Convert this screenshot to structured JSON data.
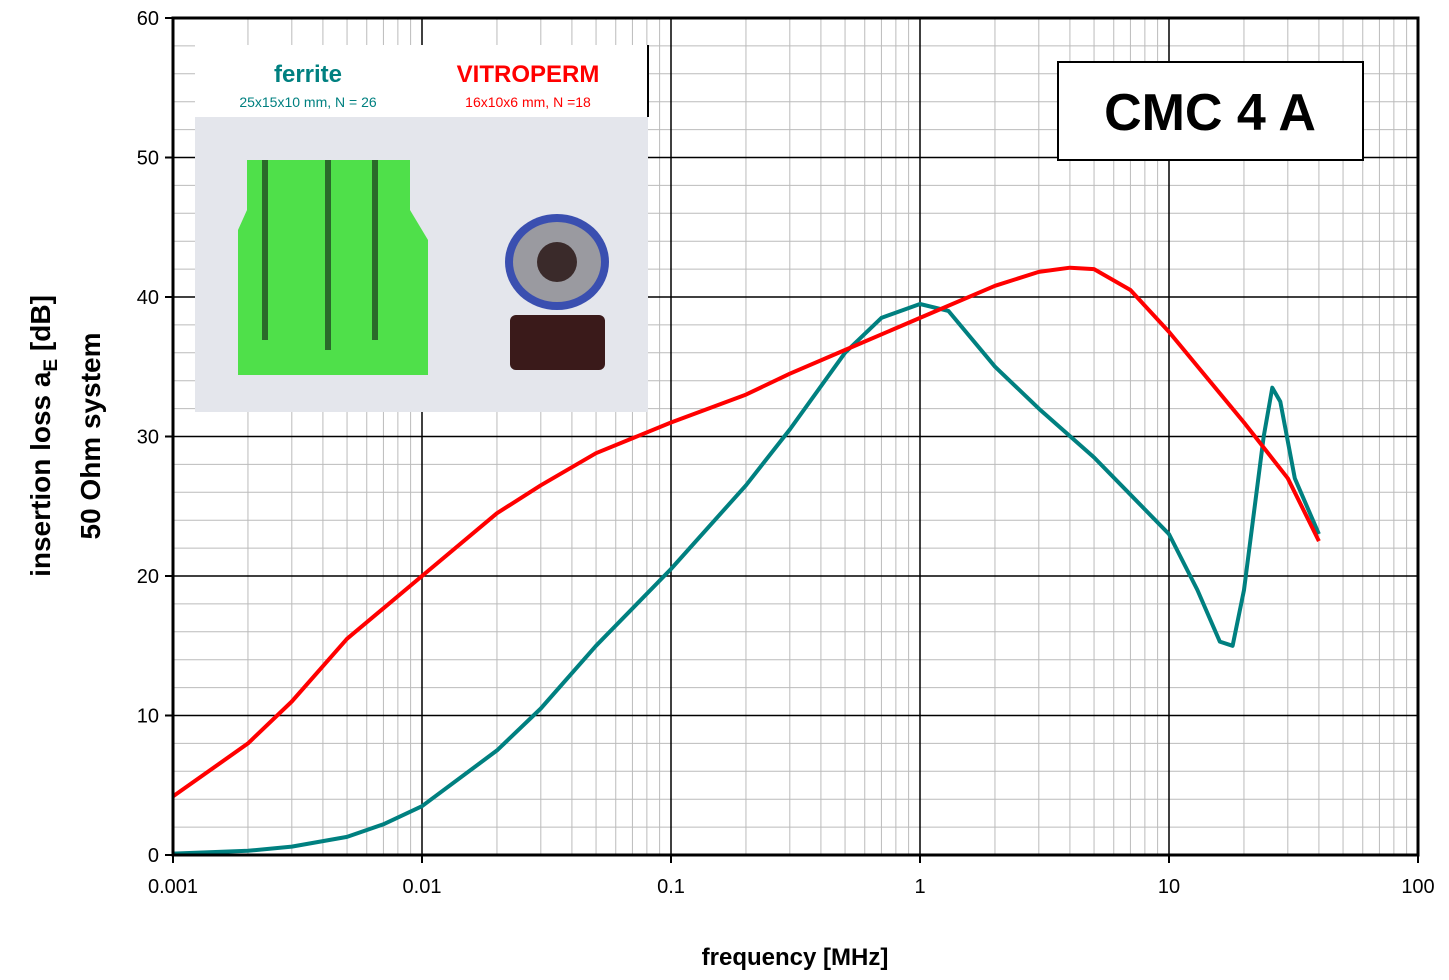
{
  "chart_data": {
    "type": "line",
    "x_label": "frequency [MHz]",
    "y_label": {
      "main": "insertion loss a",
      "sub": "E",
      "end": " [dB]"
    },
    "y_label_2": "50 Ohm system",
    "badge": "CMC 4 A",
    "inset": {
      "ferrite_title": "ferrite",
      "ferrite_spec": "25x15x10 mm, N = 26",
      "vitroperm_title": "VITROPERM",
      "vitroperm_spec": "16x10x6 mm, N =18"
    },
    "xscale": "log",
    "grid": true,
    "xlim": [
      0.001,
      100
    ],
    "xticks": [
      0.001,
      0.01,
      0.1,
      1,
      10,
      100
    ],
    "ylim": [
      0,
      60
    ],
    "yticks": [
      0,
      10,
      20,
      30,
      40,
      50,
      60
    ],
    "series": [
      {
        "name": "ferrite",
        "color": "#008080",
        "x": [
          0.001,
          0.002,
          0.003,
          0.005,
          0.007,
          0.01,
          0.02,
          0.03,
          0.05,
          0.1,
          0.2,
          0.3,
          0.5,
          0.7,
          1,
          1.3,
          2,
          3,
          5,
          10,
          13,
          16,
          18,
          20,
          24,
          26,
          28,
          32,
          40
        ],
        "values": [
          0.1,
          0.3,
          0.6,
          1.3,
          2.2,
          3.5,
          7.5,
          10.5,
          15,
          20.5,
          26.5,
          30.5,
          36,
          38.5,
          39.5,
          39,
          35,
          32,
          28.5,
          23,
          19,
          15.3,
          15,
          19,
          30,
          33.5,
          32.5,
          27,
          23
        ]
      },
      {
        "name": "VITROPERM",
        "color": "#ff0000",
        "x": [
          0.001,
          0.002,
          0.003,
          0.005,
          0.01,
          0.02,
          0.03,
          0.05,
          0.1,
          0.2,
          0.3,
          0.5,
          1,
          2,
          3,
          4,
          5,
          7,
          10,
          20,
          30,
          40
        ],
        "values": [
          4.2,
          8,
          11,
          15.5,
          20,
          24.5,
          26.5,
          28.8,
          31,
          33,
          34.5,
          36.2,
          38.5,
          40.8,
          41.8,
          42.1,
          42,
          40.5,
          37.5,
          31,
          27,
          22.5
        ]
      }
    ]
  }
}
